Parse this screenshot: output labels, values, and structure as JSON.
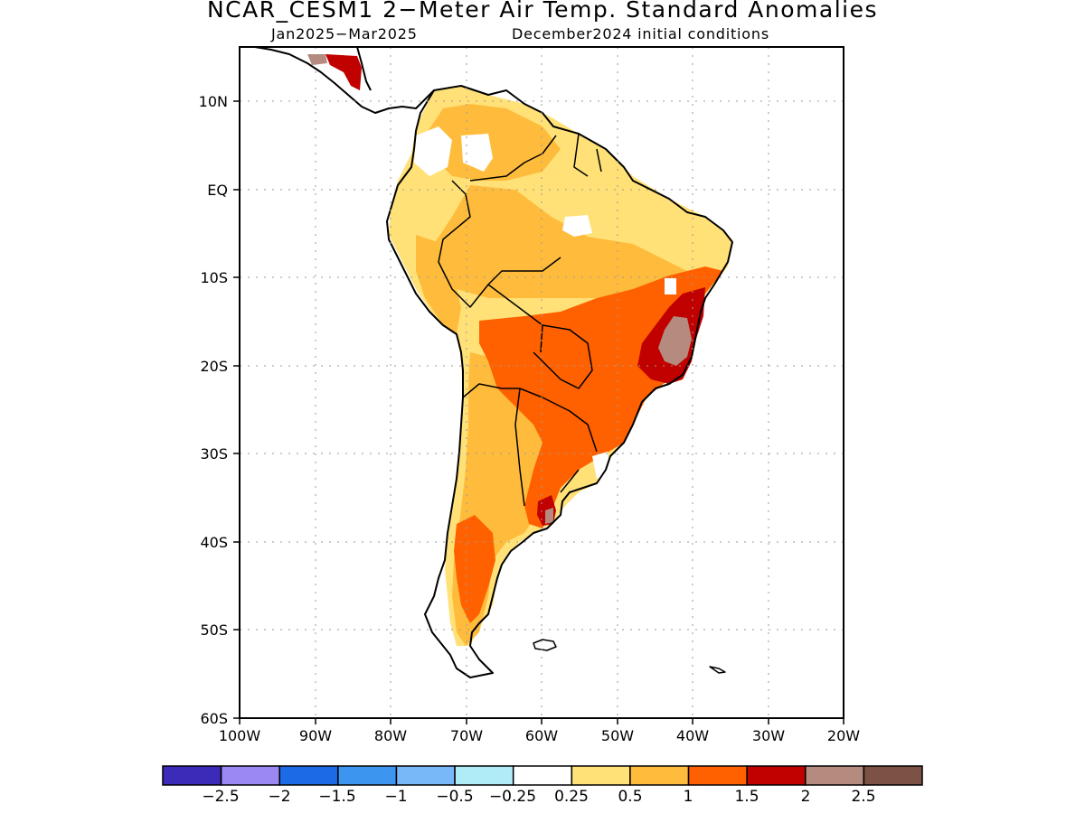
{
  "title": "NCAR_CESM1 2−Meter Air Temp. Standard Anomalies",
  "subtitle_left": "Jan2025−Mar2025",
  "subtitle_right": "December2024 initial conditions",
  "lat_labels": [
    "10N",
    "EQ",
    "10S",
    "20S",
    "30S",
    "40S",
    "50S",
    "60S"
  ],
  "lon_labels": [
    "100W",
    "90W",
    "80W",
    "70W",
    "60W",
    "50W",
    "40W",
    "30W",
    "20W"
  ],
  "colorbar": {
    "colors": [
      "#3c2ab8",
      "#9b88f2",
      "#1d6ae6",
      "#3c96f0",
      "#78b8f8",
      "#b0ecf8",
      "#ffffff",
      "#ffe178",
      "#ffbc3c",
      "#ff6100",
      "#c10000",
      "#b48b7e",
      "#7b5243"
    ],
    "labels": [
      "−2.5",
      "−2",
      "−1.5",
      "−1",
      "−0.5",
      "−0.25",
      "0.25",
      "0.5",
      "1",
      "1.5",
      "2",
      "2.5"
    ]
  }
}
